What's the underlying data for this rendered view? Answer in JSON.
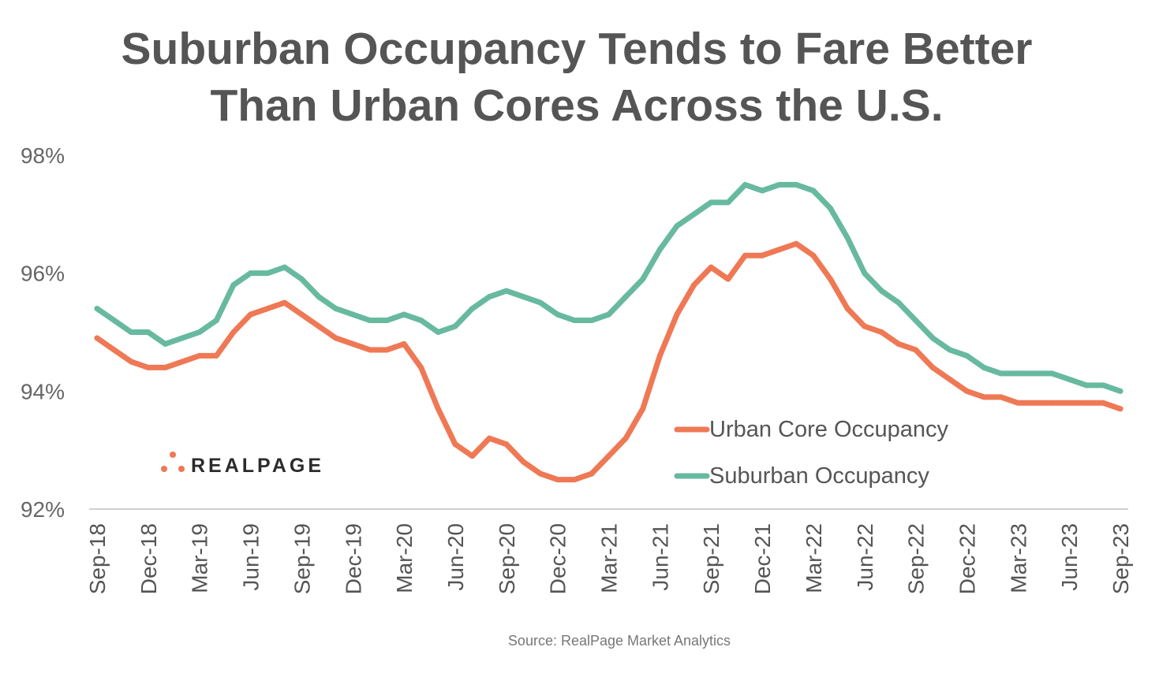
{
  "chart_data": {
    "type": "line",
    "title_lines": [
      "Suburban Occupancy Tends to Fare Better",
      "Than Urban Cores Across the U.S."
    ],
    "source": "Source: RealPage Market Analytics",
    "logo": "REALPAGE",
    "ylim": [
      92,
      98
    ],
    "yticks": [
      "92%",
      "94%",
      "96%",
      "98%"
    ],
    "ytick_values": [
      92,
      94,
      96,
      98
    ],
    "grid": false,
    "legend_position": "bottom-right",
    "xtick_labels": [
      "Sep-18",
      "Dec-18",
      "Mar-19",
      "Jun-19",
      "Sep-19",
      "Dec-19",
      "Mar-20",
      "Jun-20",
      "Sep-20",
      "Dec-20",
      "Mar-21",
      "Jun-21",
      "Sep-21",
      "Dec-21",
      "Mar-22",
      "Jun-22",
      "Sep-22",
      "Dec-22",
      "Mar-23",
      "Jun-23",
      "Sep-23"
    ],
    "x_start": "Sep-18",
    "x_end": "Sep-23",
    "x_frequency": "monthly",
    "series": [
      {
        "name": "Urban Core Occupancy",
        "color": "#EF7855",
        "values": [
          94.9,
          94.7,
          94.5,
          94.4,
          94.4,
          94.5,
          94.6,
          94.6,
          95.0,
          95.3,
          95.4,
          95.5,
          95.3,
          95.1,
          94.9,
          94.8,
          94.7,
          94.7,
          94.8,
          94.4,
          93.7,
          93.1,
          92.9,
          93.2,
          93.1,
          92.8,
          92.6,
          92.5,
          92.5,
          92.6,
          92.9,
          93.2,
          93.7,
          94.6,
          95.3,
          95.8,
          96.1,
          95.9,
          96.3,
          96.3,
          96.4,
          96.5,
          96.3,
          95.9,
          95.4,
          95.1,
          95.0,
          94.8,
          94.7,
          94.4,
          94.2,
          94.0,
          93.9,
          93.9,
          93.8,
          93.8,
          93.8,
          93.8,
          93.8,
          93.8,
          93.7
        ]
      },
      {
        "name": "Suburban Occupancy",
        "color": "#67B99F",
        "values": [
          95.4,
          95.2,
          95.0,
          95.0,
          94.8,
          94.9,
          95.0,
          95.2,
          95.8,
          96.0,
          96.0,
          96.1,
          95.9,
          95.6,
          95.4,
          95.3,
          95.2,
          95.2,
          95.3,
          95.2,
          95.0,
          95.1,
          95.4,
          95.6,
          95.7,
          95.6,
          95.5,
          95.3,
          95.2,
          95.2,
          95.3,
          95.6,
          95.9,
          96.4,
          96.8,
          97.0,
          97.2,
          97.2,
          97.5,
          97.4,
          97.5,
          97.5,
          97.4,
          97.1,
          96.6,
          96.0,
          95.7,
          95.5,
          95.2,
          94.9,
          94.7,
          94.6,
          94.4,
          94.3,
          94.3,
          94.3,
          94.3,
          94.2,
          94.1,
          94.1,
          94.0
        ]
      }
    ]
  }
}
